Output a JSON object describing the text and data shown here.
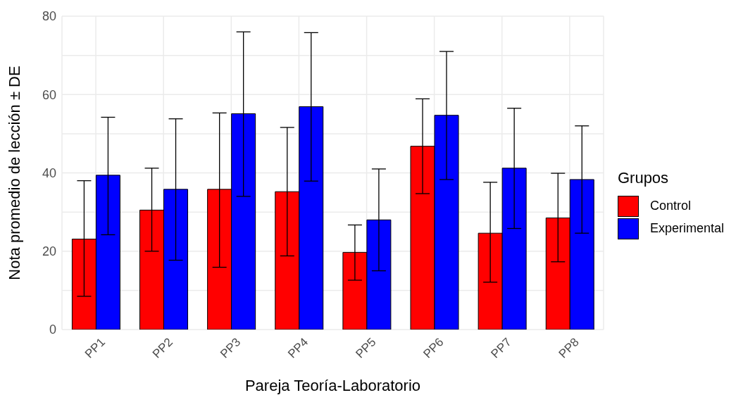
{
  "chart_data": {
    "type": "bar",
    "xlabel": "Pareja Teoría-Laboratorio",
    "ylabel": "Nota promedio de lección ± DE",
    "legend_title": "Grupos",
    "categories": [
      "PP1",
      "PP2",
      "PP3",
      "PP4",
      "PP5",
      "PP6",
      "PP7",
      "PP8"
    ],
    "series": [
      {
        "name": "Control",
        "color": "#ff0000",
        "values": [
          23.1,
          30.5,
          35.8,
          35.2,
          19.7,
          46.8,
          24.6,
          28.5
        ],
        "errors": [
          [
            8.5,
            38.0
          ],
          [
            20.0,
            41.2
          ],
          [
            15.9,
            55.3
          ],
          [
            18.8,
            51.6
          ],
          [
            12.6,
            26.7
          ],
          [
            34.7,
            58.9
          ],
          [
            12.1,
            37.6
          ],
          [
            17.3,
            39.9
          ]
        ]
      },
      {
        "name": "Experimental",
        "color": "#0000ff",
        "values": [
          39.4,
          35.8,
          55.1,
          56.9,
          28.0,
          54.7,
          41.2,
          38.3
        ],
        "errors": [
          [
            24.2,
            54.2
          ],
          [
            17.7,
            53.8
          ],
          [
            34.0,
            76.0
          ],
          [
            37.9,
            75.8
          ],
          [
            15.0,
            41.0
          ],
          [
            38.3,
            71.0
          ],
          [
            25.8,
            56.5
          ],
          [
            24.6,
            52.0
          ]
        ]
      }
    ],
    "ylim": [
      0,
      80
    ],
    "yticks": [
      0,
      {
        "value": 10,
        "label": null
      },
      20,
      {
        "value": 30,
        "label": null
      },
      40,
      {
        "value": 50,
        "label": null
      },
      60,
      {
        "value": 70,
        "label": null
      },
      80
    ],
    "grid": true,
    "legend": "right"
  }
}
